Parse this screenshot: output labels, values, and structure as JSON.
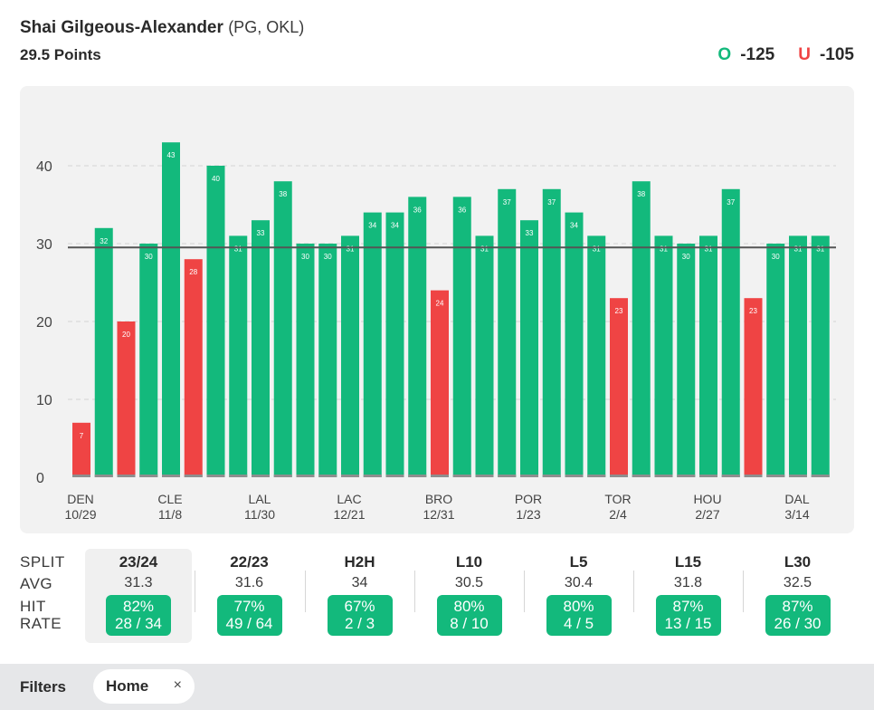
{
  "header": {
    "player_name": "Shai Gilgeous-Alexander",
    "player_meta": "(PG, OKL)",
    "prop_line": "29.5 Points",
    "over_label": "O",
    "over_odds": "-125",
    "under_label": "U",
    "under_odds": "-105"
  },
  "colors": {
    "over": "#13b97c",
    "under": "#ef4444",
    "panel": "#f2f2f2",
    "line": "#555555"
  },
  "chart_data": {
    "type": "bar",
    "title": "Shai Gilgeous-Alexander 29.5 Points",
    "ylim": [
      0,
      45
    ],
    "yticks": [
      0,
      10,
      20,
      30,
      40
    ],
    "threshold": 29.5,
    "values": [
      7,
      32,
      20,
      30,
      43,
      28,
      40,
      31,
      33,
      38,
      30,
      30,
      31,
      34,
      34,
      36,
      24,
      36,
      31,
      37,
      33,
      37,
      34,
      31,
      23,
      38,
      31,
      30,
      31,
      37,
      23,
      30,
      31,
      31
    ],
    "x_labels": [
      {
        "index": 0,
        "team": "DEN",
        "date": "10/29"
      },
      {
        "index": 4,
        "team": "CLE",
        "date": "11/8"
      },
      {
        "index": 8,
        "team": "LAL",
        "date": "11/30"
      },
      {
        "index": 12,
        "team": "LAC",
        "date": "12/21"
      },
      {
        "index": 16,
        "team": "BRO",
        "date": "12/31"
      },
      {
        "index": 20,
        "team": "POR",
        "date": "1/23"
      },
      {
        "index": 24,
        "team": "TOR",
        "date": "2/4"
      },
      {
        "index": 28,
        "team": "HOU",
        "date": "2/27"
      },
      {
        "index": 32,
        "team": "DAL",
        "date": "3/14"
      }
    ]
  },
  "splits": {
    "row_labels": {
      "split": "SPLIT",
      "avg": "AVG",
      "hit": "HIT",
      "rate": "RATE"
    },
    "items": [
      {
        "name": "23/24",
        "avg": "31.3",
        "pct": "82%",
        "count": "28 / 34",
        "selected": true
      },
      {
        "name": "22/23",
        "avg": "31.6",
        "pct": "77%",
        "count": "49 / 64",
        "selected": false
      },
      {
        "name": "H2H",
        "avg": "34",
        "pct": "67%",
        "count": "2 / 3",
        "selected": false
      },
      {
        "name": "L10",
        "avg": "30.5",
        "pct": "80%",
        "count": "8 / 10",
        "selected": false
      },
      {
        "name": "L5",
        "avg": "30.4",
        "pct": "80%",
        "count": "4 / 5",
        "selected": false
      },
      {
        "name": "L15",
        "avg": "31.8",
        "pct": "87%",
        "count": "13 / 15",
        "selected": false
      },
      {
        "name": "L30",
        "avg": "32.5",
        "pct": "87%",
        "count": "26 / 30",
        "selected": false
      }
    ]
  },
  "filters": {
    "label": "Filters",
    "chip_label": "Home",
    "chip_close": "×"
  }
}
